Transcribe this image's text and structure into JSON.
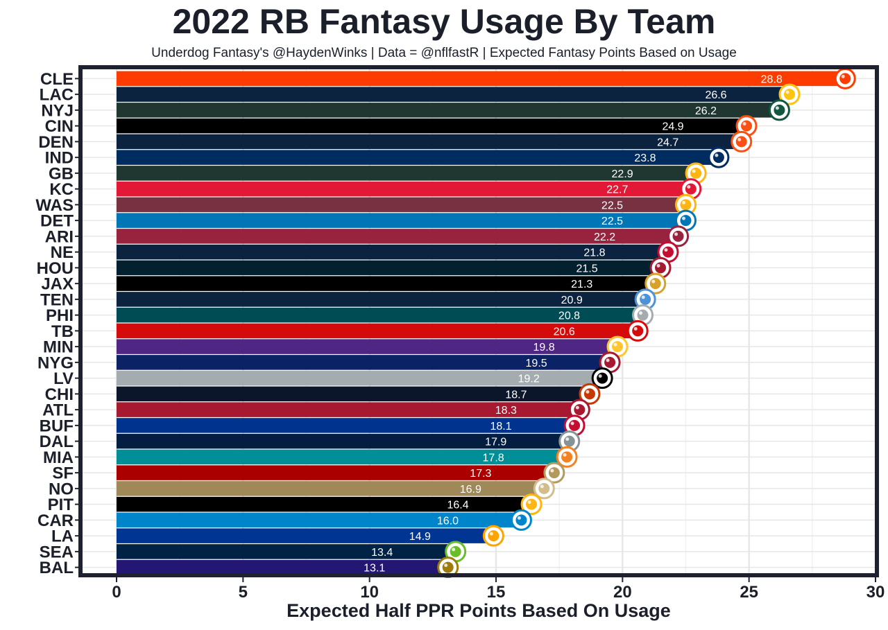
{
  "chart_data": {
    "type": "bar",
    "orientation": "horizontal",
    "title": "2022 RB Fantasy Usage By Team",
    "subtitle": "Underdog Fantasy's @HaydenWinks | Data = @nflfastR | Expected Fantasy Points Based on Usage",
    "xlabel": "Expected Half PPR Points Based On Usage",
    "ylabel": "",
    "xlim": [
      0,
      30
    ],
    "xticks": [
      0,
      5,
      10,
      15,
      20,
      25,
      30
    ],
    "grid": true,
    "categories": [
      "CLE",
      "LAC",
      "NYJ",
      "CIN",
      "DEN",
      "IND",
      "GB",
      "KC",
      "WAS",
      "DET",
      "ARI",
      "NE",
      "HOU",
      "JAX",
      "TEN",
      "PHI",
      "TB",
      "MIN",
      "NYG",
      "LV",
      "CHI",
      "ATL",
      "BUF",
      "DAL",
      "MIA",
      "SF",
      "NO",
      "PIT",
      "CAR",
      "LA",
      "SEA",
      "BAL"
    ],
    "values": [
      28.8,
      26.6,
      26.2,
      24.9,
      24.7,
      23.8,
      22.9,
      22.7,
      22.5,
      22.5,
      22.2,
      21.8,
      21.5,
      21.3,
      20.9,
      20.8,
      20.6,
      19.8,
      19.5,
      19.2,
      18.7,
      18.3,
      18.1,
      17.9,
      17.8,
      17.3,
      16.9,
      16.4,
      16.0,
      14.9,
      13.4,
      13.1
    ],
    "value_labels": [
      "28.8",
      "26.6",
      "26.2",
      "24.9",
      "24.7",
      "23.8",
      "22.9",
      "22.7",
      "22.5",
      "22.5",
      "22.2",
      "21.8",
      "21.5",
      "21.3",
      "20.9",
      "20.8",
      "20.6",
      "19.8",
      "19.5",
      "19.2",
      "18.7",
      "18.3",
      "18.1",
      "17.9",
      "17.8",
      "17.3",
      "16.9",
      "16.4",
      "16.0",
      "14.9",
      "13.4",
      "13.1"
    ],
    "colors": [
      "#FF3C00",
      "#0C2340",
      "#203731",
      "#000000",
      "#0C2340",
      "#002C5F",
      "#203731",
      "#E31837",
      "#773141",
      "#0076B6",
      "#97233F",
      "#0C2340",
      "#03202F",
      "#000000",
      "#0C2340",
      "#004C54",
      "#D50A0A",
      "#4F2683",
      "#0B2265",
      "#A5ACAF",
      "#0B162A",
      "#A71930",
      "#00338D",
      "#041E42",
      "#008E97",
      "#AA0000",
      "#9F8958",
      "#000000",
      "#0085CA",
      "#003594",
      "#002244",
      "#241773"
    ],
    "logos": [
      "browns-helmet-icon",
      "chargers-bolt-icon",
      "jets-logo-icon",
      "bengals-stripes-icon",
      "broncos-horse-icon",
      "colts-horseshoe-icon",
      "packers-g-icon",
      "chiefs-arrowhead-icon",
      "commanders-w-icon",
      "lions-icon",
      "cardinals-bird-icon",
      "patriots-icon",
      "texans-bull-icon",
      "jaguars-icon",
      "titans-icon",
      "eagles-icon",
      "buccaneers-flag-icon",
      "vikings-icon",
      "giants-ny-icon",
      "raiders-shield-icon",
      "bears-c-icon",
      "falcons-icon",
      "bills-icon",
      "cowboys-star-icon",
      "dolphins-icon",
      "49ers-oval-icon",
      "saints-fleur-icon",
      "steelers-icon",
      "panthers-icon",
      "rams-la-icon",
      "seahawks-icon",
      "ravens-icon"
    ],
    "logo_colors": [
      "#FF3C00",
      "#FFC20E",
      "#125740",
      "#FB4F14",
      "#FB4F14",
      "#002C5F",
      "#FFB612",
      "#E31837",
      "#FFB612",
      "#0076B6",
      "#97233F",
      "#C60C30",
      "#A71930",
      "#D7A22A",
      "#4B92DB",
      "#A5ACAF",
      "#D50A0A",
      "#FFC62F",
      "#A71930",
      "#000000",
      "#C83803",
      "#A71930",
      "#C60C30",
      "#869397",
      "#F58220",
      "#B3995D",
      "#D3BC8D",
      "#FFB612",
      "#0085CA",
      "#FFA300",
      "#69BE28",
      "#9E7C0C"
    ]
  }
}
